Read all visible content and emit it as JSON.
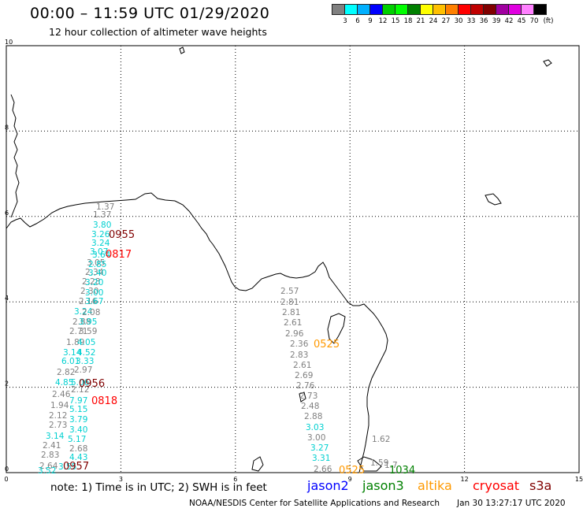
{
  "header": {
    "title": "00:00 – 11:59 UTC 01/29/2020",
    "subtitle": "12 hour collection of altimeter wave heights"
  },
  "colorbar": {
    "colors": [
      "#808080",
      "#00ffff",
      "#00b0ff",
      "#0000ff",
      "#00d000",
      "#00ff00",
      "#008000",
      "#ffff00",
      "#ffc000",
      "#ff8000",
      "#ff0000",
      "#c00000",
      "#800000",
      "#a000a0",
      "#e000e0",
      "#ff80ff",
      "#000000"
    ],
    "labels": [
      "3",
      "6",
      "9",
      "12",
      "15",
      "18",
      "21",
      "24",
      "27",
      "30",
      "33",
      "36",
      "39",
      "42",
      "45",
      "70",
      "(ft)"
    ]
  },
  "axes": {
    "x_ticks": [
      "0",
      "3",
      "6",
      "9",
      "12",
      "15"
    ],
    "y_ticks": [
      "0",
      "2",
      "4",
      "6",
      "8",
      "10"
    ]
  },
  "pass_times": [
    {
      "text": "0955",
      "color": "#800000"
    },
    {
      "text": "0817",
      "color": "#ff0000"
    },
    {
      "text": "0956",
      "color": "#800000"
    },
    {
      "text": "0818",
      "color": "#ff0000"
    },
    {
      "text": "0957",
      "color": "#800000"
    },
    {
      "text": "0525",
      "color": "#ff9900"
    },
    {
      "text": "0525",
      "color": "#ff9900"
    },
    {
      "text": "1034",
      "color": "#008000"
    }
  ],
  "wave_heights": [
    {
      "v": "1.37",
      "c": "#808080"
    },
    {
      "v": "1.37",
      "c": "#808080"
    },
    {
      "v": "3.80",
      "c": "#00d0d0"
    },
    {
      "v": "3.26",
      "c": "#00d0d0"
    },
    {
      "v": "3.24",
      "c": "#00d0d0"
    },
    {
      "v": "3.07",
      "c": "#00d0d0"
    },
    {
      "v": "3.64",
      "c": "#00d0d0"
    },
    {
      "v": "3.05",
      "c": "#808080"
    },
    {
      "v": "2.85",
      "c": "#00d0d0"
    },
    {
      "v": "2.34",
      "c": "#808080"
    },
    {
      "v": "3.40",
      "c": "#00d0d0"
    },
    {
      "v": "2.28",
      "c": "#808080"
    },
    {
      "v": "3.20",
      "c": "#00d0d0"
    },
    {
      "v": "2.30",
      "c": "#808080"
    },
    {
      "v": "3.00",
      "c": "#00d0d0"
    },
    {
      "v": "2.16",
      "c": "#808080"
    },
    {
      "v": "3.67",
      "c": "#00d0d0"
    },
    {
      "v": "3.24",
      "c": "#00d0d0"
    },
    {
      "v": "2.08",
      "c": "#808080"
    },
    {
      "v": "2.88",
      "c": "#808080"
    },
    {
      "v": "3.95",
      "c": "#00d0d0"
    },
    {
      "v": "2.71",
      "c": "#808080"
    },
    {
      "v": "3.59",
      "c": "#808080"
    },
    {
      "v": "1.89",
      "c": "#808080"
    },
    {
      "v": "4.05",
      "c": "#00d0d0"
    },
    {
      "v": "3.14",
      "c": "#00d0d0"
    },
    {
      "v": "4.52",
      "c": "#00d0d0"
    },
    {
      "v": "6.01",
      "c": "#00d0d0"
    },
    {
      "v": "3.33",
      "c": "#00d0d0"
    },
    {
      "v": "2.82",
      "c": "#808080"
    },
    {
      "v": "2.97",
      "c": "#808080"
    },
    {
      "v": "4.85",
      "c": "#00d0d0"
    },
    {
      "v": "5.06",
      "c": "#00d0d0"
    },
    {
      "v": "2.46",
      "c": "#808080"
    },
    {
      "v": "2.12",
      "c": "#808080"
    },
    {
      "v": "7.97",
      "c": "#00d0d0"
    },
    {
      "v": "1.94",
      "c": "#808080"
    },
    {
      "v": "5.15",
      "c": "#00d0d0"
    },
    {
      "v": "2.12",
      "c": "#808080"
    },
    {
      "v": "3.79",
      "c": "#00d0d0"
    },
    {
      "v": "2.73",
      "c": "#808080"
    },
    {
      "v": "3.40",
      "c": "#00d0d0"
    },
    {
      "v": "3.14",
      "c": "#00d0d0"
    },
    {
      "v": "5.17",
      "c": "#00d0d0"
    },
    {
      "v": "2.41",
      "c": "#808080"
    },
    {
      "v": "2.68",
      "c": "#808080"
    },
    {
      "v": "2.83",
      "c": "#808080"
    },
    {
      "v": "4.43",
      "c": "#00d0d0"
    },
    {
      "v": "2.64",
      "c": "#808080"
    },
    {
      "v": "3.55",
      "c": "#00d0d0"
    },
    {
      "v": "3.52",
      "c": "#00d0d0"
    },
    {
      "v": "2.57",
      "c": "#808080"
    },
    {
      "v": "2.81",
      "c": "#808080"
    },
    {
      "v": "2.81",
      "c": "#808080"
    },
    {
      "v": "2.61",
      "c": "#808080"
    },
    {
      "v": "2.96",
      "c": "#808080"
    },
    {
      "v": "2.36",
      "c": "#808080"
    },
    {
      "v": "2.83",
      "c": "#808080"
    },
    {
      "v": "2.61",
      "c": "#808080"
    },
    {
      "v": "2.69",
      "c": "#808080"
    },
    {
      "v": "2.76",
      "c": "#808080"
    },
    {
      "v": "2.73",
      "c": "#808080"
    },
    {
      "v": "2.48",
      "c": "#808080"
    },
    {
      "v": "2.88",
      "c": "#808080"
    },
    {
      "v": "3.03",
      "c": "#00d0d0"
    },
    {
      "v": "3.00",
      "c": "#808080"
    },
    {
      "v": "3.27",
      "c": "#00d0d0"
    },
    {
      "v": "3.31",
      "c": "#00d0d0"
    },
    {
      "v": "2.66",
      "c": "#808080"
    },
    {
      "v": "1.62",
      "c": "#808080"
    },
    {
      "v": "1.59",
      "c": "#808080"
    },
    {
      "v": "1.7",
      "c": "#808080"
    }
  ],
  "footer": {
    "note": "note:  1) Time is in UTC;  2) SWH is in feet",
    "legend": [
      {
        "name": "jason2",
        "color": "#0000ff"
      },
      {
        "name": "jason3",
        "color": "#008000"
      },
      {
        "name": "altika",
        "color": "#ff9900"
      },
      {
        "name": "cryosat",
        "color": "#ff0000"
      },
      {
        "name": "s3a",
        "color": "#800000"
      }
    ],
    "credit": "NOAA/NESDIS Center for Satellite Applications and Research",
    "timestamp": "Jan 30 13:27:17 UTC 2020"
  }
}
